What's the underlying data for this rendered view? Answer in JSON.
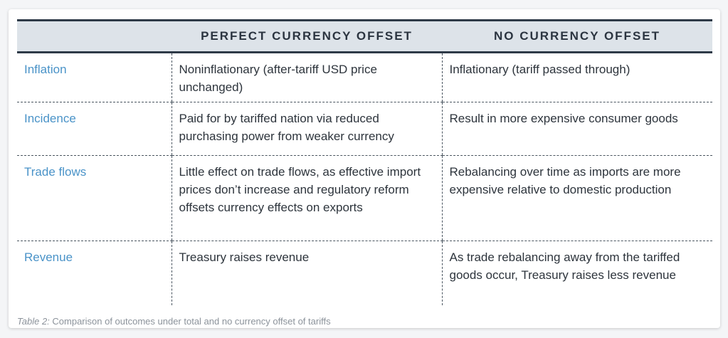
{
  "header": {
    "col1": "",
    "col2": "PERFECT CURRENCY OFFSET",
    "col3": "NO CURRENCY OFFSET"
  },
  "rows": [
    {
      "label": "Inflation",
      "perfect": "Noninflationary (after-tariff USD price unchanged)",
      "none": "Inflationary (tariff passed through)"
    },
    {
      "label": "Incidence",
      "perfect": "Paid for by tariffed nation via reduced purchasing power from weaker currency",
      "none": "Result in more expensive consumer goods"
    },
    {
      "label": "Trade flows",
      "perfect": "Little effect on trade flows, as effective import prices don’t increase and regulatory reform offsets currency effects on exports",
      "none": "Rebalancing over time as imports are more expensive relative to domestic production"
    },
    {
      "label": "Revenue",
      "perfect": "Treasury raises revenue",
      "none": "As trade rebalancing away from the tariffed goods occur, Treasury raises less revenue"
    }
  ],
  "caption": {
    "prefix": "Table 2:",
    "text": " Comparison of outcomes under total and no currency offset of tariffs"
  },
  "colors": {
    "header_bg": "#dde3e9",
    "label_blue": "#4a93c8",
    "rule_dark": "#2e3a47"
  }
}
